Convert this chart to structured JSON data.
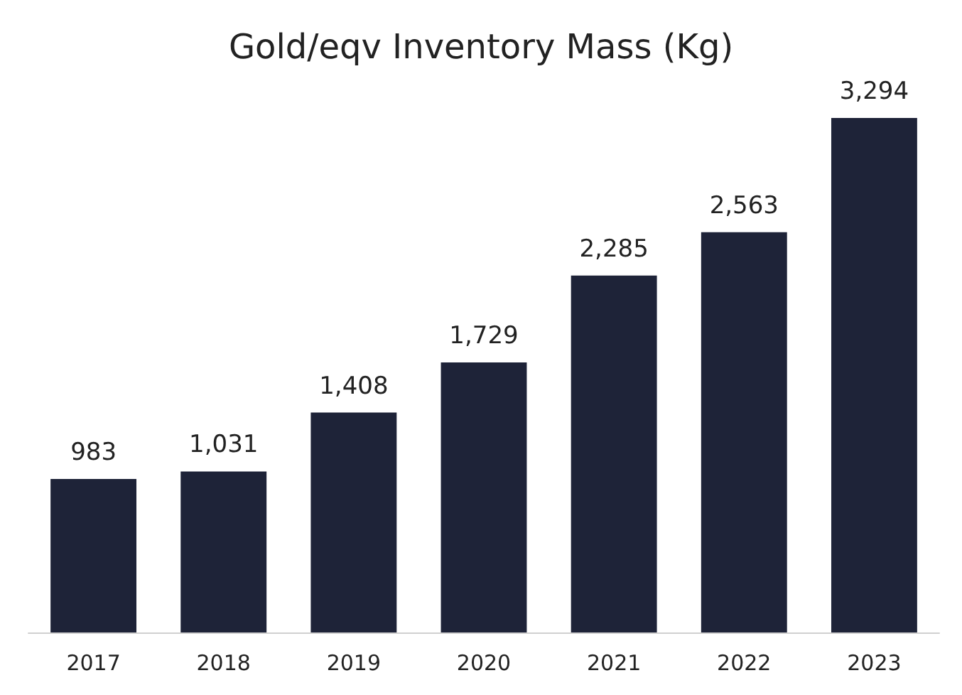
{
  "chart_data": {
    "type": "bar",
    "title": "Gold/eqv Inventory Mass (Kg)",
    "categories": [
      "2017",
      "2018",
      "2019",
      "2020",
      "2021",
      "2022",
      "2023"
    ],
    "values": [
      983,
      1031,
      1408,
      1729,
      2285,
      2563,
      3294
    ],
    "value_labels": [
      "983",
      "1,031",
      "1,408",
      "1,729",
      "2,285",
      "2,563",
      "3,294"
    ],
    "color": "#1e2338"
  }
}
